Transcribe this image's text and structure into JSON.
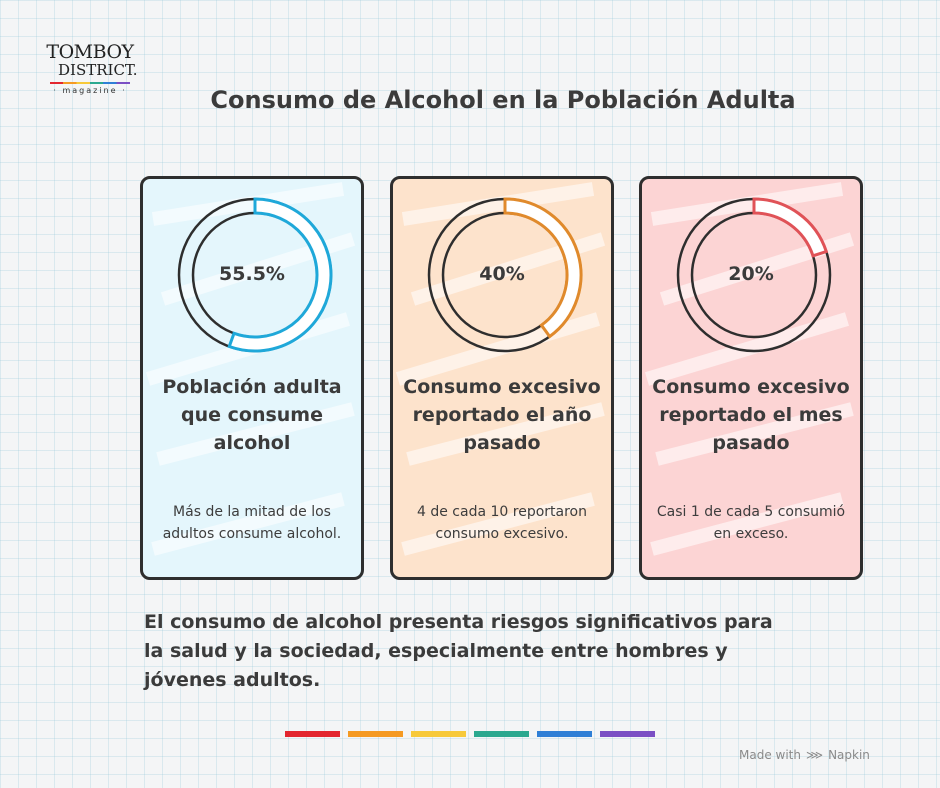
{
  "logo": {
    "line1": "TOMBOY",
    "line2": "DISTRICT.",
    "line3": "· magazine ·"
  },
  "title": "Consumo de Alcohol en la Población Adulta",
  "cards": [
    {
      "percent_label": "55.5%",
      "percent": 55.5,
      "heading": "Población adulta que consume alcohol",
      "description": "Más de la mitad de los adultos consume alcohol.",
      "accent": "#1fa8d9",
      "background": "#e4f6fc"
    },
    {
      "percent_label": "40%",
      "percent": 40,
      "heading": "Consumo excesivo reportado el año pasado",
      "description": "4 de cada 10 reportaron consumo excesivo.",
      "accent": "#e08a2c",
      "background": "#fde3cc"
    },
    {
      "percent_label": "20%",
      "percent": 20,
      "heading": "Consumo excesivo reportado el mes pasado",
      "description": "Casi 1 de cada 5 consumió en exceso.",
      "accent": "#e05257",
      "background": "#fcd4d4"
    }
  ],
  "statement": "El consumo de alcohol presenta riesgos significativos para la salud y la sociedad, especialmente entre hombres y jóvenes adultos.",
  "color_bars": [
    "#e3262f",
    "#f59a22",
    "#f7c93a",
    "#2aa88f",
    "#2f7fd6",
    "#7a4fc4"
  ],
  "footer": {
    "made_with": "Made with",
    "brand": "Napkin",
    "icon": "napkin-icon"
  }
}
